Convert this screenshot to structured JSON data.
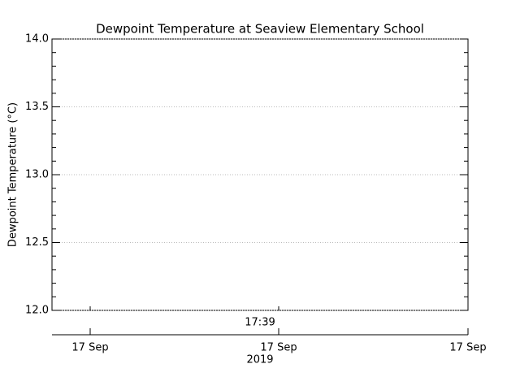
{
  "chart_data": {
    "type": "line",
    "title": "Dewpoint Temperature at Seaview Elementary School",
    "ylabel": "Dewpoint Temperature (°C)",
    "ylim": [
      12.0,
      14.0
    ],
    "yticks": [
      {
        "value": 12.0,
        "label": "12.0"
      },
      {
        "value": 12.5,
        "label": "12.5"
      },
      {
        "value": 13.0,
        "label": "13.0"
      },
      {
        "value": 13.5,
        "label": "13.5"
      },
      {
        "value": 14.0,
        "label": "14.0"
      }
    ],
    "grid": true,
    "time_label": "17:39",
    "xtick_labels": [
      "17 Sep",
      "17 Sep",
      "17 Sep"
    ],
    "year_label": "2019"
  }
}
